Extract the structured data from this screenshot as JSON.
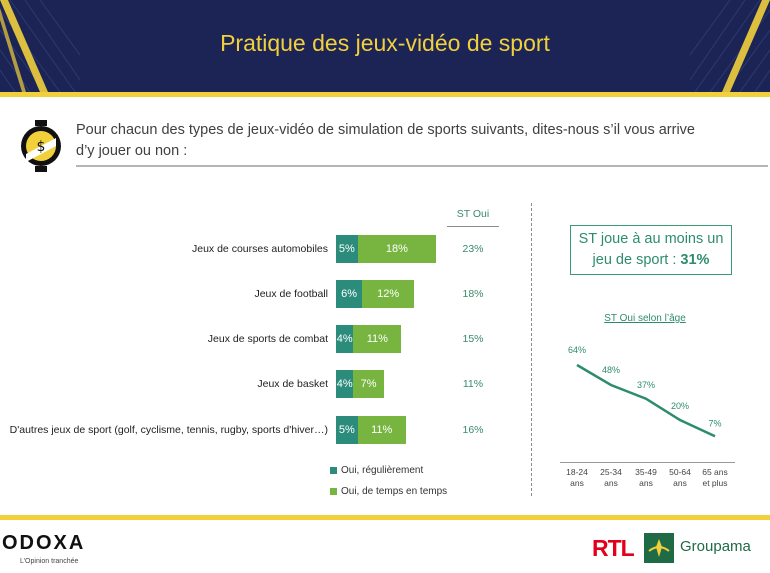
{
  "header": {
    "title": "Pratique des jeux-vidéo de sport"
  },
  "question": {
    "line1": "Pour chacun des types de jeux-vidéo de simulation de sports suivants, dites-nous s’il vous arrive",
    "line2": "d’y jouer ou non :"
  },
  "table": {
    "st_oui_header": "ST Oui"
  },
  "chart_data": [
    {
      "type": "bar",
      "orientation": "horizontal",
      "stacked": true,
      "categories": [
        "Jeux de courses automobiles",
        "Jeux de football",
        "Jeux de sports de combat",
        "Jeux de basket",
        "D'autres jeux de sport (golf, cyclisme, tennis, rugby, sports d'hiver…)"
      ],
      "series": [
        {
          "name": "Oui, régulièrement",
          "values": [
            5,
            6,
            4,
            4,
            5
          ],
          "labels": [
            "5%",
            "6%",
            "4%",
            "4%",
            "5%"
          ],
          "color": "#2b8c7c"
        },
        {
          "name": "Oui, de temps en temps",
          "values": [
            18,
            12,
            11,
            7,
            11
          ],
          "labels": [
            "18%",
            "12%",
            "11%",
            "7%",
            "11%"
          ],
          "color": "#77b540"
        }
      ],
      "st_oui": [
        "23%",
        "18%",
        "15%",
        "11%",
        "16%"
      ],
      "legend_position": "bottom"
    },
    {
      "type": "line",
      "title": "ST Oui selon l’âge",
      "categories": [
        "18-24 ans",
        "25-34 ans",
        "35-49 ans",
        "50-64 ans",
        "65 ans et plus"
      ],
      "category_lines": [
        [
          "18-24",
          "ans"
        ],
        [
          "25-34",
          "ans"
        ],
        [
          "35-49",
          "ans"
        ],
        [
          "50-64",
          "ans"
        ],
        [
          "65 ans",
          "et plus"
        ]
      ],
      "values": [
        64,
        48,
        37,
        20,
        7
      ],
      "labels": [
        "64%",
        "48%",
        "37%",
        "20%",
        "7%"
      ],
      "color": "#2b8c6e"
    }
  ],
  "callout": {
    "line1": "ST joue à au moins un",
    "line2_prefix": "jeu de sport : ",
    "line2_value": "31%"
  },
  "footer": {
    "odoxa": "ODOXA",
    "odoxa_tagline": "L’Opinion tranchée",
    "rtl": "RTL",
    "groupama": "Groupama"
  },
  "colors": {
    "navy": "#1b2455",
    "yellow": "#f2d03c",
    "green_text": "#2e8c6e"
  }
}
